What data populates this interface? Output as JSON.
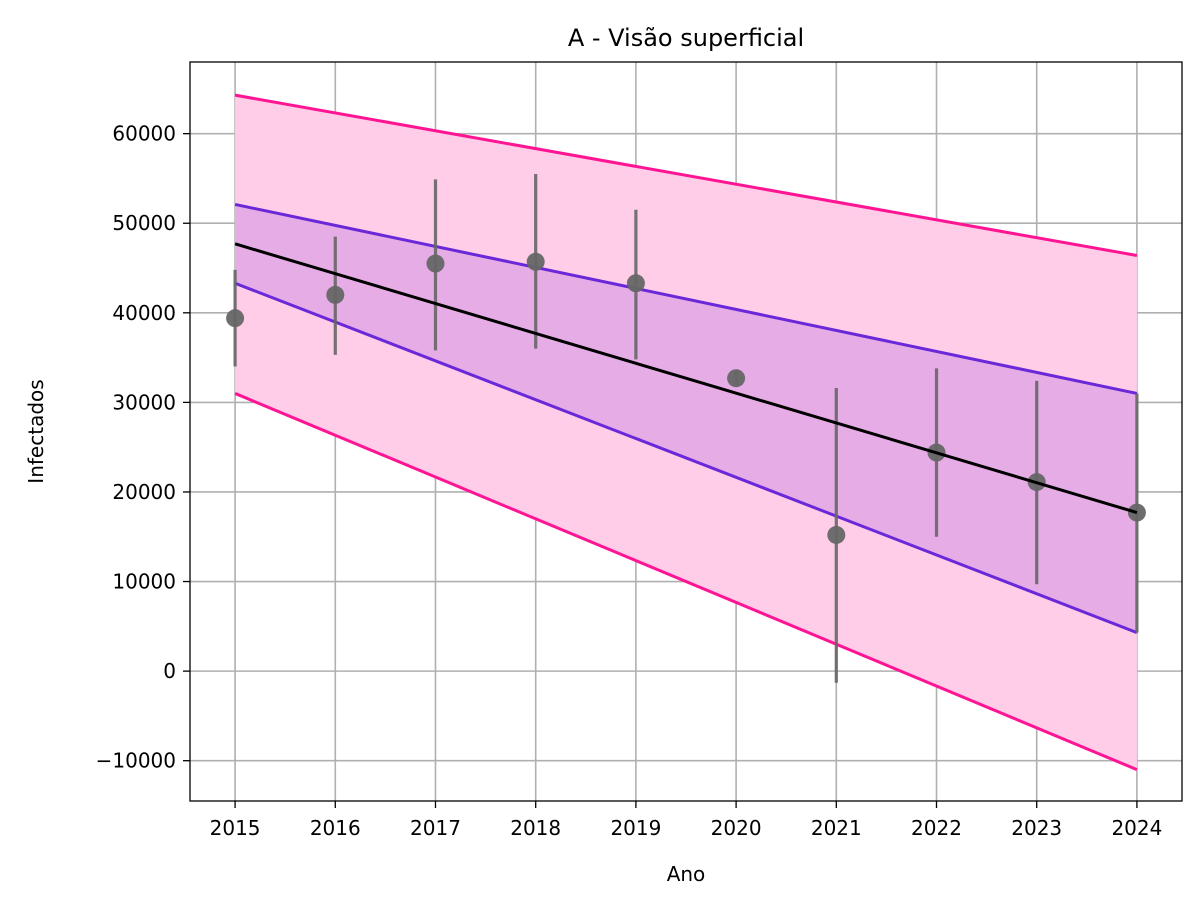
{
  "chart_data": {
    "type": "line",
    "title": "A - Visão superficial",
    "xlabel": "Ano",
    "ylabel": "Infectados",
    "xlim": [
      2014.55,
      2024.45
    ],
    "ylim": [
      -14500,
      68000
    ],
    "x_ticks": [
      2015,
      2016,
      2017,
      2018,
      2019,
      2020,
      2021,
      2022,
      2023,
      2024
    ],
    "y_ticks": [
      -10000,
      0,
      10000,
      20000,
      30000,
      40000,
      50000,
      60000
    ],
    "y_tick_labels": [
      "−10000",
      "0",
      "10000",
      "20000",
      "30000",
      "40000",
      "50000",
      "60000"
    ],
    "grid": true,
    "colors": {
      "points": "#666666",
      "fit": "#000000",
      "inner_band_line": "#6a28d8",
      "inner_band_fill": "#e2a8e4",
      "outer_band_line": "#ff1493",
      "outer_band_fill": "#ffcde8",
      "grid": "#b0b0b0"
    },
    "points": [
      {
        "x": 2015,
        "y": 39400,
        "err_low": 34000,
        "err_high": 44800
      },
      {
        "x": 2016,
        "y": 42000,
        "err_low": 35300,
        "err_high": 48500
      },
      {
        "x": 2017,
        "y": 45500,
        "err_low": 35800,
        "err_high": 54900
      },
      {
        "x": 2018,
        "y": 45700,
        "err_low": 36000,
        "err_high": 55500
      },
      {
        "x": 2019,
        "y": 43300,
        "err_low": 34800,
        "err_high": 51500
      },
      {
        "x": 2020,
        "y": 32700,
        "err_low": 31800,
        "err_high": 33600
      },
      {
        "x": 2021,
        "y": 15200,
        "err_low": -1300,
        "err_high": 31600
      },
      {
        "x": 2022,
        "y": 24400,
        "err_low": 15000,
        "err_high": 33800
      },
      {
        "x": 2023,
        "y": 21100,
        "err_low": 9700,
        "err_high": 32400
      },
      {
        "x": 2024,
        "y": 17700,
        "err_low": 4300,
        "err_high": 31000
      }
    ],
    "fit_line": {
      "x": [
        2015,
        2024
      ],
      "y": [
        47700,
        17700
      ]
    },
    "inner_band": {
      "x": [
        2015,
        2024
      ],
      "upper": [
        52100,
        31000
      ],
      "lower": [
        43300,
        4300
      ]
    },
    "outer_band": {
      "x": [
        2015,
        2024
      ],
      "upper": [
        64300,
        46400
      ],
      "lower": [
        31000,
        -11000
      ]
    }
  }
}
